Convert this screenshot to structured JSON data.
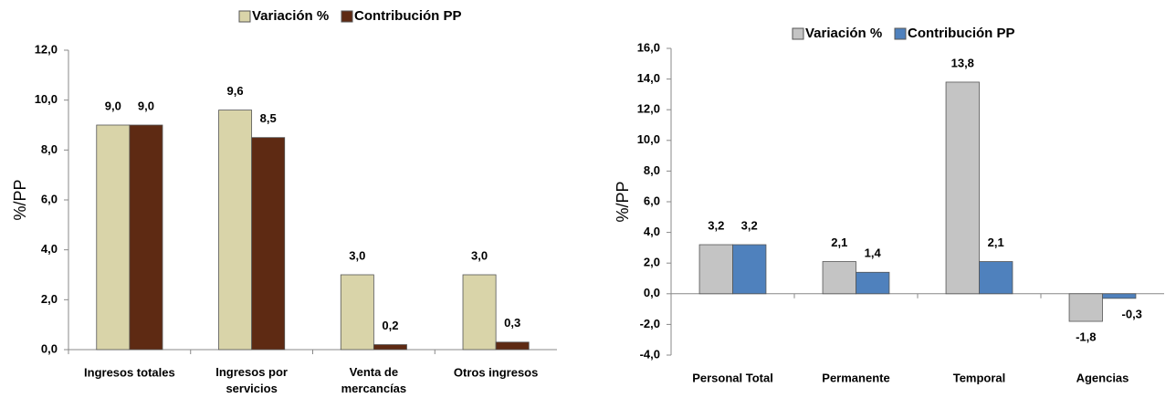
{
  "chart_data": [
    {
      "type": "bar",
      "categories": [
        "Ingresos totales",
        "Ingresos por\nservicios",
        "Venta de\nmercancías",
        "Otros ingresos"
      ],
      "y_label": "%/PP",
      "series": [
        {
          "name": "Variación %",
          "color": "#d9d4a9",
          "values": [
            9.0,
            9.6,
            3.0,
            3.0
          ],
          "value_labels": [
            "9,0",
            "9,6",
            "3,0",
            "3,0"
          ]
        },
        {
          "name": "Contribución PP",
          "color": "#5e2a13",
          "values": [
            9.0,
            8.5,
            0.2,
            0.3
          ],
          "value_labels": [
            "9,0",
            "8,5",
            "0,2",
            "0,3"
          ]
        }
      ],
      "ylim": [
        0,
        12
      ],
      "yticks": [
        {
          "value": 0,
          "label": "0,0"
        },
        {
          "value": 2,
          "label": "2,0"
        },
        {
          "value": 4,
          "label": "4,0"
        },
        {
          "value": 6,
          "label": "6,0"
        },
        {
          "value": 8,
          "label": "8,0"
        },
        {
          "value": 10,
          "label": "10,0"
        },
        {
          "value": 12,
          "label": "12,0"
        }
      ]
    },
    {
      "type": "bar",
      "categories": [
        "Personal Total",
        "Permanente",
        "Temporal",
        "Agencias"
      ],
      "y_label": "%/PP",
      "series": [
        {
          "name": "Variación %",
          "color": "#c4c4c4",
          "values": [
            3.2,
            2.1,
            13.8,
            -1.8
          ],
          "value_labels": [
            "3,2",
            "2,1",
            "13,8",
            "-1,8"
          ]
        },
        {
          "name": "Contribución PP",
          "color": "#4f81bd",
          "values": [
            3.2,
            1.4,
            2.1,
            -0.3
          ],
          "value_labels": [
            "3,2",
            "1,4",
            "2,1",
            "-0,3"
          ]
        }
      ],
      "ylim": [
        -4,
        16
      ],
      "yticks": [
        {
          "value": -4,
          "label": "-4,0"
        },
        {
          "value": -2,
          "label": "-2,0"
        },
        {
          "value": 0,
          "label": "0,0"
        },
        {
          "value": 2,
          "label": "2,0"
        },
        {
          "value": 4,
          "label": "4,0"
        },
        {
          "value": 6,
          "label": "6,0"
        },
        {
          "value": 8,
          "label": "8,0"
        },
        {
          "value": 10,
          "label": "10,0"
        },
        {
          "value": 12,
          "label": "12,0"
        },
        {
          "value": 14,
          "label": "14,0"
        },
        {
          "value": 16,
          "label": "16,0"
        }
      ]
    }
  ]
}
